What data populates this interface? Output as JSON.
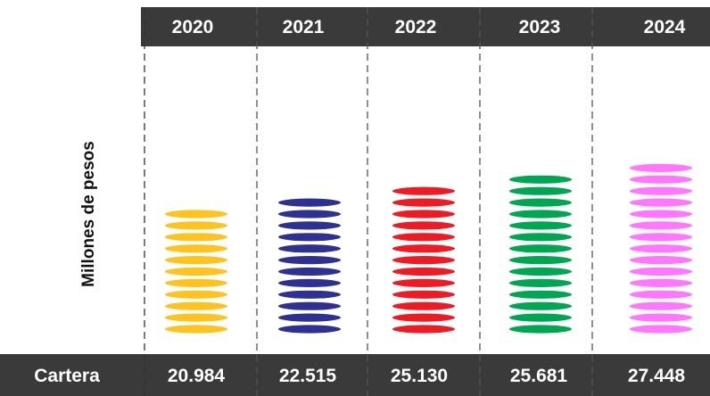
{
  "chart_data": {
    "type": "bar",
    "categories": [
      "2020",
      "2021",
      "2022",
      "2023",
      "2024"
    ],
    "series": [
      {
        "name": "Cartera",
        "values": [
          20984,
          22515,
          25130,
          25681,
          27448
        ],
        "labels": [
          "20.984",
          "22.515",
          "25.130",
          "25.681",
          "27.448"
        ]
      }
    ],
    "disc_counts": [
      11,
      12,
      13,
      14,
      15
    ],
    "colors": [
      "#FFC320",
      "#2E3192",
      "#ED1C24",
      "#00A651",
      "#FF77FF"
    ],
    "ylabel": "Millones de pesos",
    "row_label": "Cartera",
    "header_bg": "#3A3A3A",
    "grid": "dashed vertical separators"
  }
}
